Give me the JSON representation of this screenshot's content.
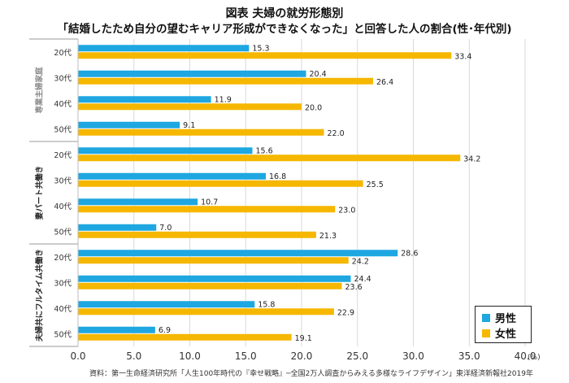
{
  "title_line1": "図表 夫婦の就労形態別",
  "title_line2": "「結婚したため自分の望むキャリア形成ができなくなった」と回答した人の割合(性･年代別)",
  "source": "資料：第一生命経済研究所「人生100年時代の『幸せ戦略』─全国2万人調査からみえる多様なライフデザイン」東洋経済新報社2019年",
  "colors": {
    "male": "#1EA7E1",
    "female": "#F5B700",
    "grid": "#d9d9d9"
  },
  "chart_data": {
    "type": "bar",
    "orientation": "horizontal",
    "x_axis": {
      "min": 0,
      "max": 40,
      "ticks": [
        "0.0",
        "5.0",
        "10.0",
        "15.0",
        "20.0",
        "25.0",
        "30.0",
        "35.0",
        "40.0"
      ],
      "unit": "(%)"
    },
    "legend": {
      "position": "bottom-right",
      "entries": [
        "男性",
        "女性"
      ]
    },
    "groups": [
      {
        "label": "専業主婦家庭",
        "categories": [
          "20代",
          "30代",
          "40代",
          "50代"
        ],
        "male": [
          15.3,
          20.4,
          11.9,
          9.1
        ],
        "female": [
          33.4,
          26.4,
          20.0,
          22.0
        ]
      },
      {
        "label": "妻パート共働き",
        "categories": [
          "20代",
          "30代",
          "40代",
          "50代"
        ],
        "male": [
          15.6,
          16.8,
          10.7,
          7.0
        ],
        "female": [
          34.2,
          25.5,
          23.0,
          21.3
        ]
      },
      {
        "label": "夫婦共にフルタイム共働き",
        "categories": [
          "20代",
          "30代",
          "40代",
          "50代"
        ],
        "male": [
          28.6,
          24.4,
          15.8,
          6.9
        ],
        "female": [
          24.2,
          23.6,
          22.9,
          19.1
        ]
      }
    ],
    "series": [
      {
        "name": "男性",
        "key": "male"
      },
      {
        "name": "女性",
        "key": "female"
      }
    ]
  }
}
